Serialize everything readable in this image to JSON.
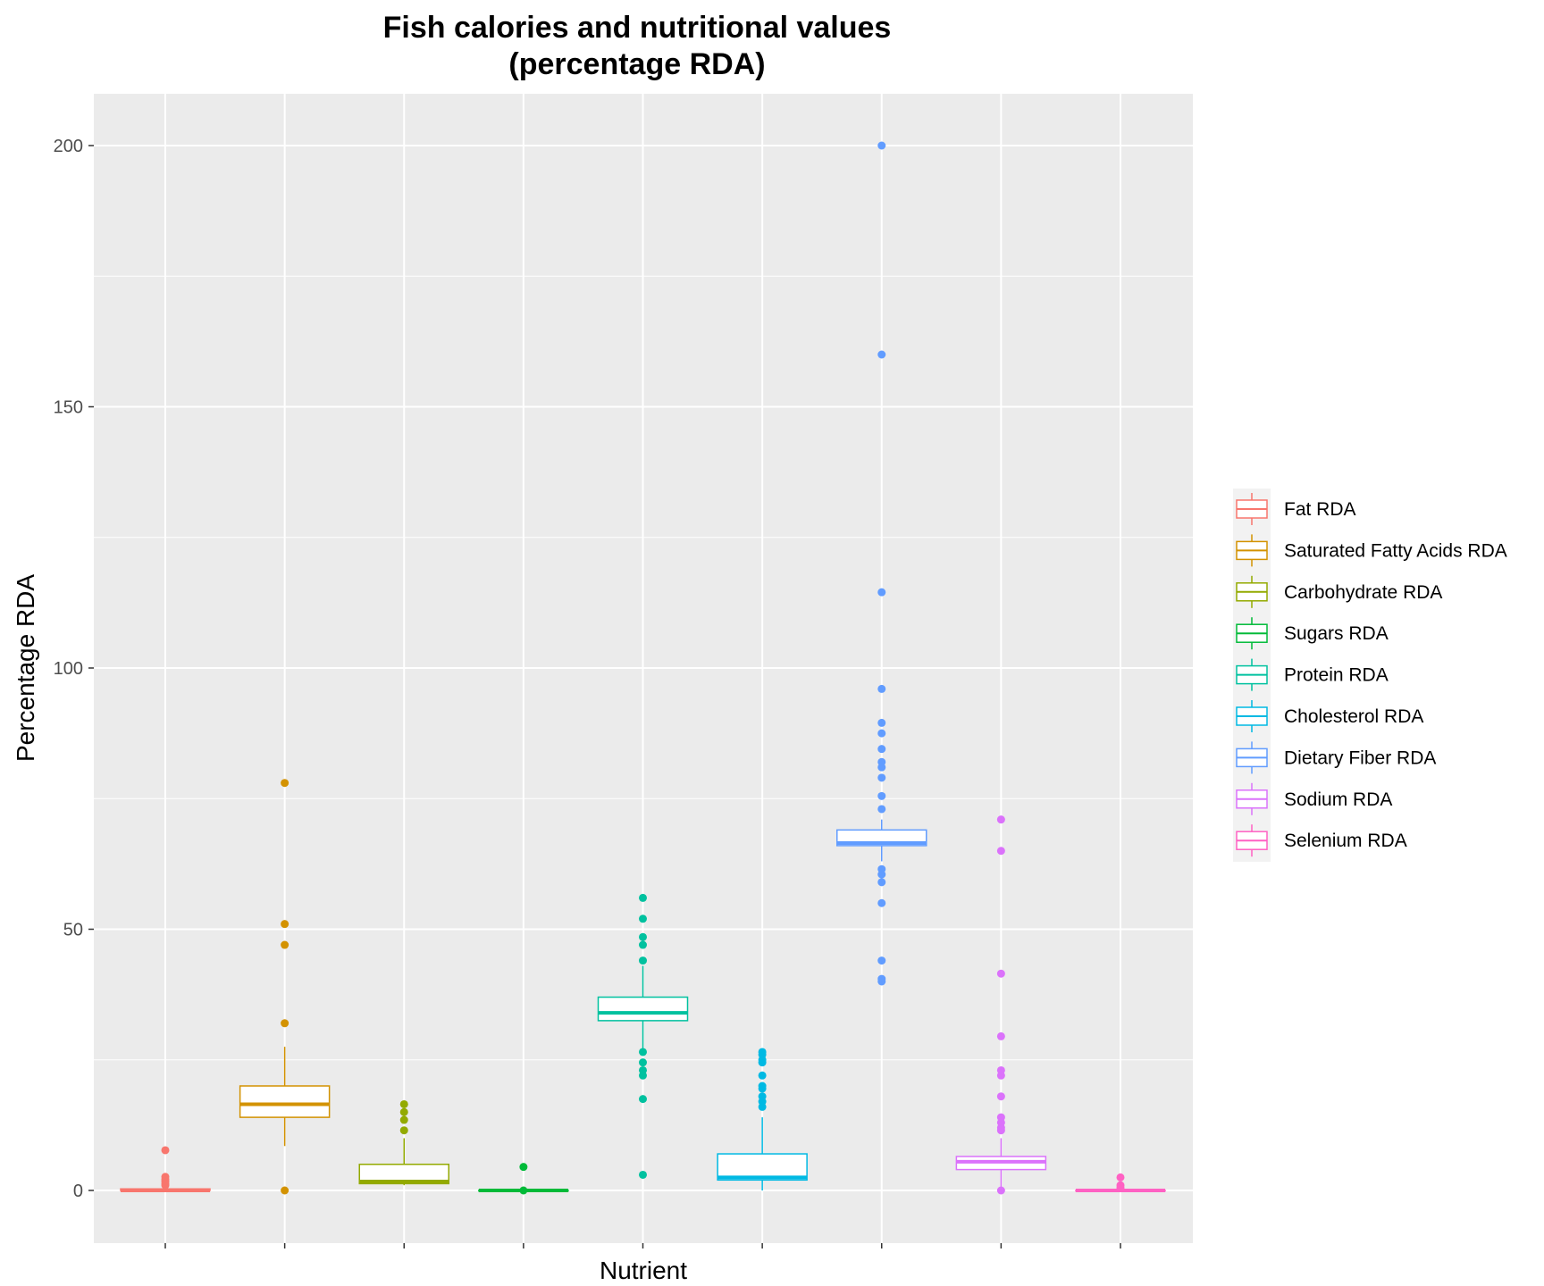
{
  "chart_data": {
    "type": "boxplot",
    "title": "Fish calories and nutritional values\n(percentage RDA)",
    "title_lines": [
      "Fish calories and nutritional values",
      "(percentage RDA)"
    ],
    "xlabel": "Nutrient",
    "ylabel": "Percentage RDA",
    "ylim": [
      -10,
      210
    ],
    "yticks": [
      0,
      50,
      100,
      150,
      200
    ],
    "grid": true,
    "legend_position": "right",
    "series": [
      {
        "name": "Fat RDA",
        "color": "#F8766D",
        "min": 0,
        "q1": 0,
        "median": 0,
        "q3": 0.3,
        "max": 0.6,
        "outliers": [
          7.7,
          2.6,
          2.1,
          1.7,
          1.3,
          1.0
        ]
      },
      {
        "name": "Saturated Fatty Acids RDA",
        "color": "#D39200",
        "min": 8.5,
        "q1": 14,
        "median": 16.5,
        "q3": 20,
        "max": 27.5,
        "outliers": [
          78,
          51,
          47,
          32,
          0
        ]
      },
      {
        "name": "Carbohydrate RDA",
        "color": "#93AA00",
        "min": 1,
        "q1": 1.3,
        "median": 1.7,
        "q3": 5,
        "max": 10,
        "outliers": [
          16.5,
          15,
          13.5,
          11.5
        ]
      },
      {
        "name": "Sugars RDA",
        "color": "#00BA38",
        "min": 0,
        "q1": 0,
        "median": 0,
        "q3": 0,
        "max": 0,
        "outliers": [
          4.5,
          0
        ]
      },
      {
        "name": "Protein RDA",
        "color": "#00C19F",
        "min": 27,
        "q1": 32.5,
        "median": 34,
        "q3": 37,
        "max": 43,
        "outliers": [
          56,
          52,
          48.5,
          47,
          44,
          26.5,
          24.5,
          23,
          22,
          17.5,
          3
        ]
      },
      {
        "name": "Cholesterol RDA",
        "color": "#00B9E3",
        "min": 0,
        "q1": 2,
        "median": 2.5,
        "q3": 7,
        "max": 14,
        "outliers": [
          26.5,
          26,
          25,
          24.5,
          22,
          20,
          19.5,
          18,
          17,
          16
        ]
      },
      {
        "name": "Dietary Fiber RDA",
        "color": "#619CFF",
        "min": 63,
        "q1": 66,
        "median": 66.5,
        "q3": 69,
        "max": 71,
        "outliers": [
          200,
          160,
          114.5,
          96,
          89.5,
          87.5,
          84.5,
          82,
          81,
          79,
          75.5,
          73,
          61.5,
          60.5,
          59,
          55,
          44,
          40.5,
          40
        ]
      },
      {
        "name": "Sodium RDA",
        "color": "#DB72FB",
        "min": 0,
        "q1": 4,
        "median": 5.5,
        "q3": 6.5,
        "max": 10,
        "outliers": [
          71,
          65,
          41.5,
          29.5,
          23,
          22,
          18,
          14,
          13,
          12,
          11.5,
          0
        ]
      },
      {
        "name": "Selenium RDA",
        "color": "#FF61C3",
        "min": 0,
        "q1": 0,
        "median": 0,
        "q3": 0,
        "max": 0,
        "outliers": [
          2.5,
          1.0,
          0.5
        ]
      }
    ]
  }
}
